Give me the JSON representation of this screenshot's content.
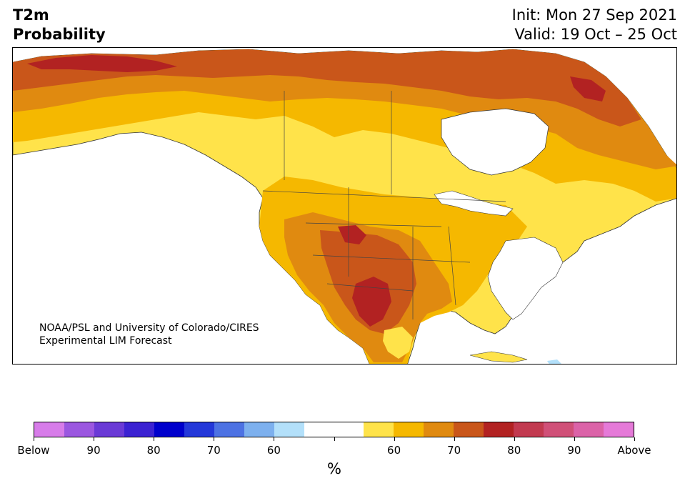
{
  "title": {
    "left_line1": "T2m",
    "left_line2": "Probability",
    "init": "Init: Mon 27 Sep 2021",
    "valid": "Valid: 19 Oct – 25 Oct"
  },
  "credit": {
    "line1": "NOAA/PSL and University of Colorado/CIRES",
    "line2": "Experimental LIM Forecast"
  },
  "colorbar": {
    "unit": "%",
    "colors": [
      "#d77ce9",
      "#9b57e0",
      "#6a3ad6",
      "#3b22d2",
      "#0000cc",
      "#2438d9",
      "#4d72e3",
      "#7db0ee",
      "#b3e0fa",
      "#ffffff",
      "#ffffff",
      "#ffe34a",
      "#f5b800",
      "#e08a10",
      "#c9561a",
      "#b22222",
      "#c23a50",
      "#d05078",
      "#db63a8",
      "#e57ad8"
    ],
    "tick_labels": [
      "Below",
      "90",
      "80",
      "70",
      "60",
      "",
      "60",
      "70",
      "80",
      "90",
      "Above"
    ]
  },
  "map": {
    "legend_colors": {
      "p50_60": "#ffe34a",
      "p60_70": "#f5b800",
      "p70_80": "#e08a10",
      "p80_90": "#c9561a",
      "p90_plus": "#b22222",
      "below_light": "#b3e0fa",
      "water": "#ffffff"
    }
  }
}
